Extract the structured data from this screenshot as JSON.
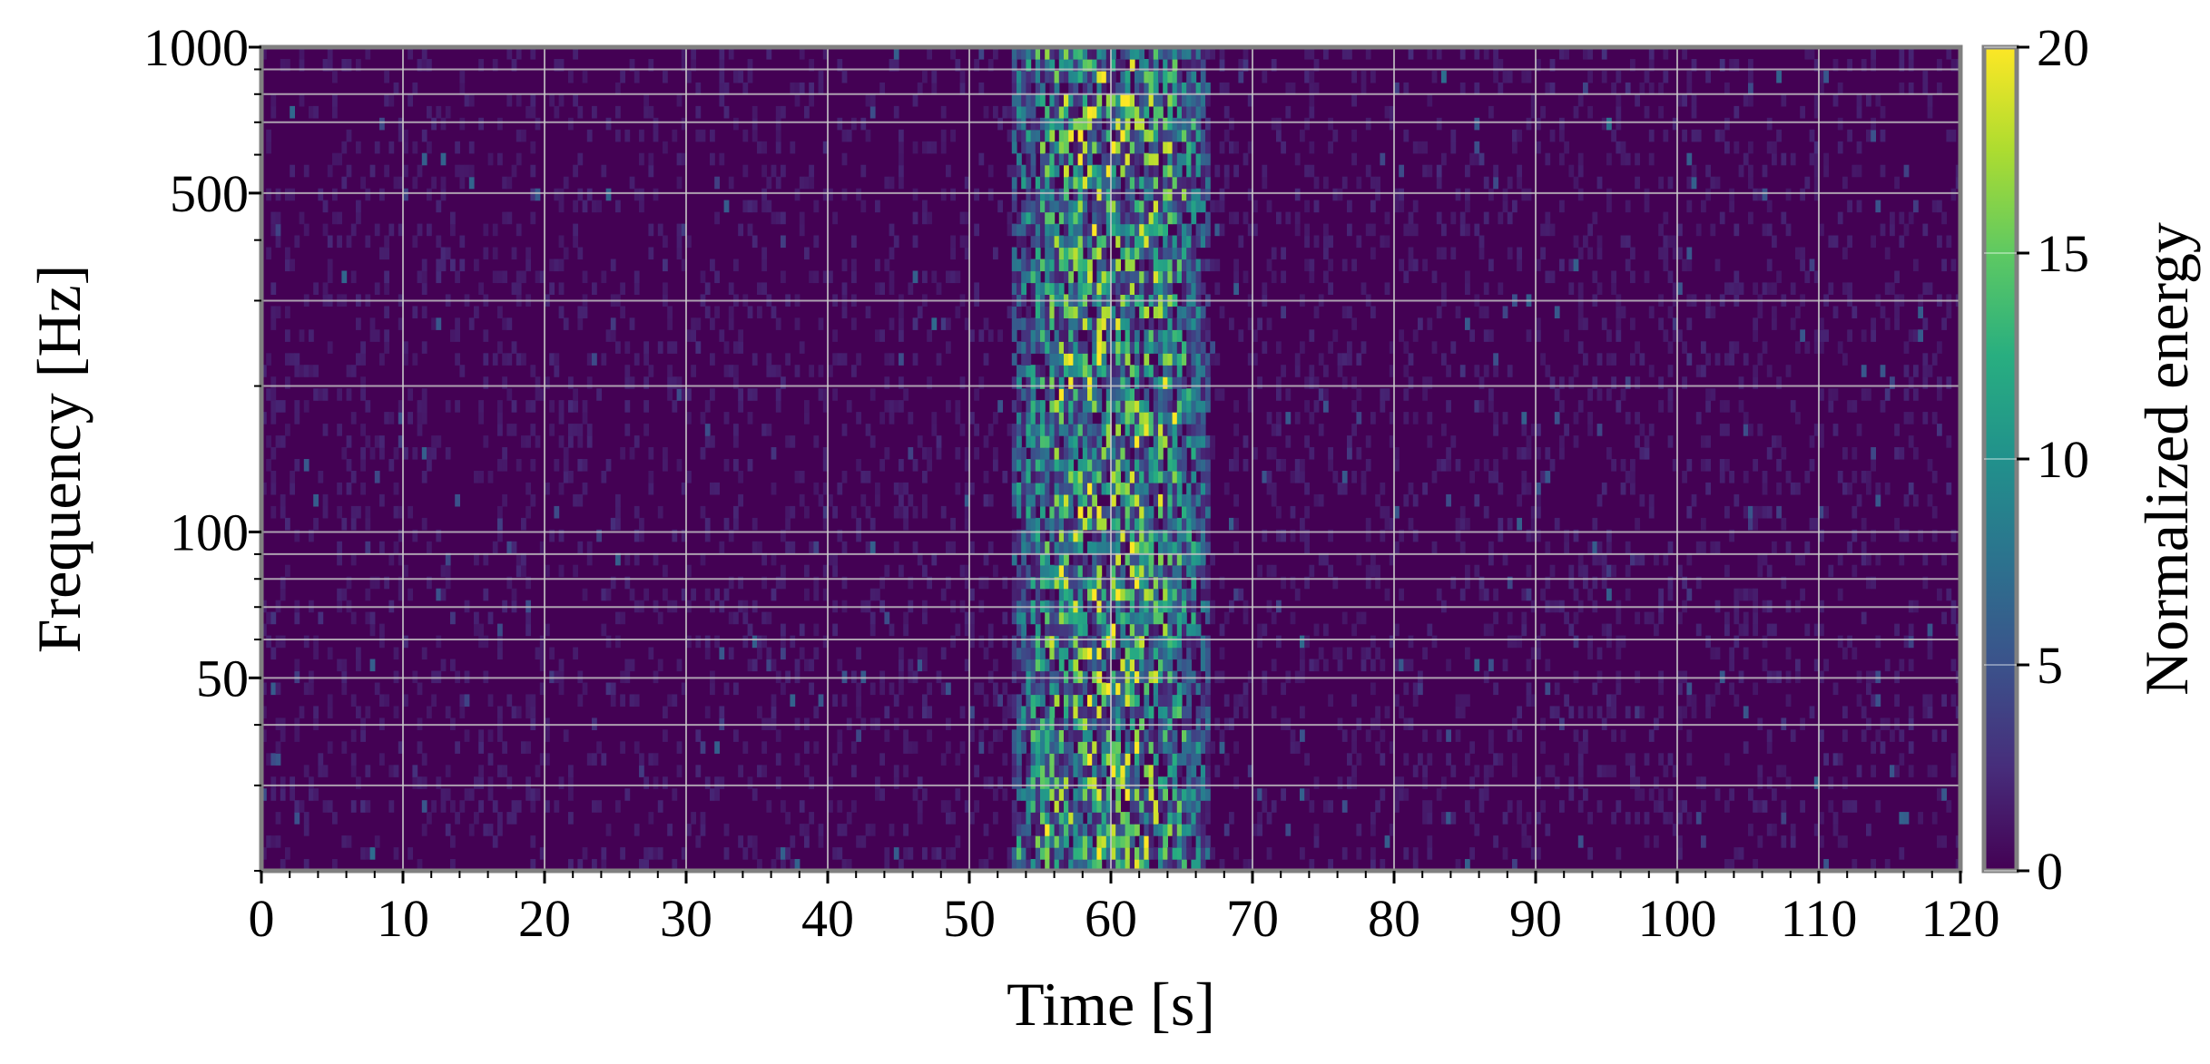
{
  "chart_data": {
    "type": "heatmap",
    "title": "",
    "xlabel": "Time [s]",
    "ylabel": "Frequency [Hz]",
    "xlim": [
      0,
      120
    ],
    "ylim": [
      20,
      1000
    ],
    "yscale": "log",
    "x_major_ticks": [
      0,
      10,
      20,
      30,
      40,
      50,
      60,
      70,
      80,
      90,
      100,
      110,
      120
    ],
    "x_tick_labels": [
      "0",
      "10",
      "20",
      "30",
      "40",
      "50",
      "60",
      "70",
      "80",
      "90",
      "100",
      "110",
      "120"
    ],
    "y_labeled_ticks": [
      50,
      100,
      500,
      1000
    ],
    "y_tick_labels": [
      "50",
      "100",
      "500",
      "1000"
    ],
    "y_grid_values": [
      30,
      40,
      50,
      60,
      70,
      80,
      90,
      100,
      200,
      300,
      500,
      700,
      800,
      900,
      1000
    ],
    "grid": true,
    "colormap": "viridis",
    "colorbar": {
      "label": "Normalized energy",
      "range": [
        0,
        20
      ],
      "ticks": [
        0,
        5,
        10,
        15,
        20
      ],
      "tick_labels": [
        "0",
        "5",
        "10",
        "15",
        "20"
      ]
    },
    "signal_band": {
      "time_range": [
        53,
        67
      ],
      "frequency_range": [
        20,
        1000
      ],
      "peak_energy": 20
    },
    "background_energy": [
      0,
      3
    ]
  }
}
